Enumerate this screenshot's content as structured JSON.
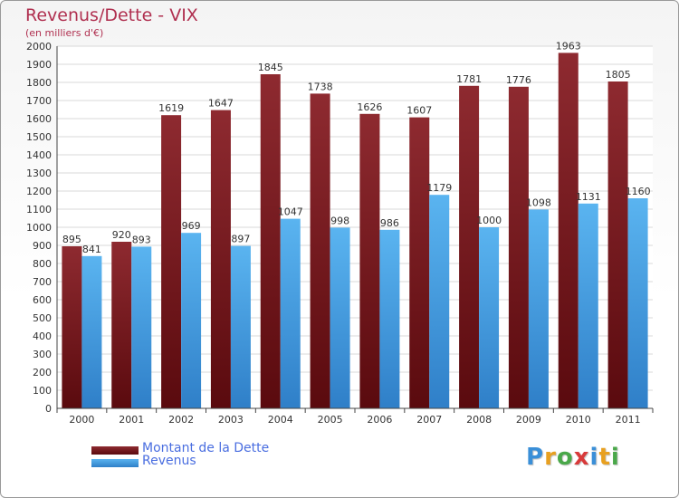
{
  "chart_data": {
    "type": "bar",
    "title": "Revenus/Dette - VIX",
    "subtitle": "(en milliers d'€)",
    "categories": [
      "2000",
      "2001",
      "2002",
      "2003",
      "2004",
      "2005",
      "2006",
      "2007",
      "2008",
      "2009",
      "2010",
      "2011"
    ],
    "series": [
      {
        "name": "Montant de la Dette",
        "color": "#7a1e22",
        "values": [
          895,
          920,
          1619,
          1647,
          1845,
          1738,
          1626,
          1607,
          1781,
          1776,
          1963,
          1805
        ]
      },
      {
        "name": "Revenus",
        "color": "#4aa3e6",
        "values": [
          841,
          893,
          969,
          897,
          1047,
          998,
          986,
          1179,
          1000,
          1098,
          1131,
          1160
        ]
      }
    ],
    "ylim": [
      0,
      2000
    ],
    "ytick_step": 100,
    "grid": true,
    "legend_position": "bottom-left"
  },
  "branding": {
    "logo_letters": [
      "P",
      "r",
      "o",
      "x",
      "i",
      "t",
      "i"
    ],
    "logo_colors": [
      "#3a8fd8",
      "#e8a020",
      "#4aa84a",
      "#d83a3a",
      "#3a8fd8",
      "#e8a020",
      "#4aa84a"
    ]
  }
}
